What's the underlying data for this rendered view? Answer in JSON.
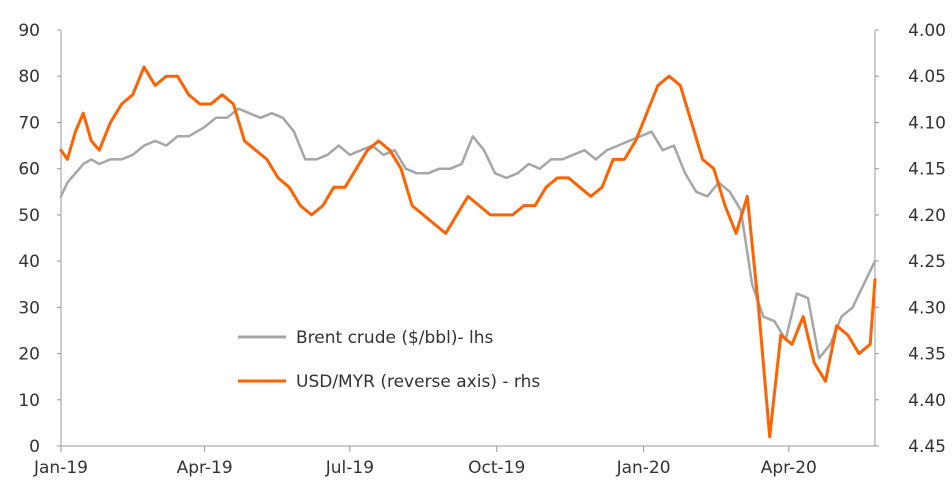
{
  "chart_data": {
    "type": "line",
    "x_ticks": [
      "Jan-19",
      "Apr-19",
      "Jul-19",
      "Oct-19",
      "Jan-20",
      "Apr-20"
    ],
    "x_range": [
      "2019-01-01",
      "2020-05-25"
    ],
    "y_left": {
      "lim": [
        0,
        90
      ],
      "ticks": [
        "0",
        "10",
        "20",
        "30",
        "40",
        "50",
        "60",
        "70",
        "80",
        "90"
      ]
    },
    "y_right": {
      "lim": [
        4.45,
        4.0
      ],
      "reversed": true,
      "ticks": [
        "4.00",
        "4.05",
        "4.10",
        "4.15",
        "4.20",
        "4.25",
        "4.30",
        "4.35",
        "4.40",
        "4.45"
      ]
    },
    "grid": false,
    "legend_position": "center-left",
    "series": [
      {
        "name": "Brent crude ($/bbl)- lhs",
        "axis": "left",
        "color": "#a6a6a6",
        "points": [
          [
            "2019-01-01",
            54
          ],
          [
            "2019-01-05",
            57
          ],
          [
            "2019-01-10",
            59
          ],
          [
            "2019-01-15",
            61
          ],
          [
            "2019-01-20",
            62
          ],
          [
            "2019-01-25",
            61
          ],
          [
            "2019-02-01",
            62
          ],
          [
            "2019-02-08",
            62
          ],
          [
            "2019-02-15",
            63
          ],
          [
            "2019-02-22",
            65
          ],
          [
            "2019-03-01",
            66
          ],
          [
            "2019-03-08",
            65
          ],
          [
            "2019-03-15",
            67
          ],
          [
            "2019-03-22",
            67
          ],
          [
            "2019-04-01",
            69
          ],
          [
            "2019-04-08",
            71
          ],
          [
            "2019-04-15",
            71
          ],
          [
            "2019-04-22",
            73
          ],
          [
            "2019-04-29",
            72
          ],
          [
            "2019-05-06",
            71
          ],
          [
            "2019-05-13",
            72
          ],
          [
            "2019-05-20",
            71
          ],
          [
            "2019-05-27",
            68
          ],
          [
            "2019-06-03",
            62
          ],
          [
            "2019-06-10",
            62
          ],
          [
            "2019-06-17",
            63
          ],
          [
            "2019-06-24",
            65
          ],
          [
            "2019-07-01",
            63
          ],
          [
            "2019-07-08",
            64
          ],
          [
            "2019-07-15",
            65
          ],
          [
            "2019-07-22",
            63
          ],
          [
            "2019-07-29",
            64
          ],
          [
            "2019-08-05",
            60
          ],
          [
            "2019-08-12",
            59
          ],
          [
            "2019-08-19",
            59
          ],
          [
            "2019-08-26",
            60
          ],
          [
            "2019-09-02",
            60
          ],
          [
            "2019-09-09",
            61
          ],
          [
            "2019-09-16",
            67
          ],
          [
            "2019-09-23",
            64
          ],
          [
            "2019-09-30",
            59
          ],
          [
            "2019-10-07",
            58
          ],
          [
            "2019-10-14",
            59
          ],
          [
            "2019-10-21",
            61
          ],
          [
            "2019-10-28",
            60
          ],
          [
            "2019-11-04",
            62
          ],
          [
            "2019-11-11",
            62
          ],
          [
            "2019-11-18",
            63
          ],
          [
            "2019-11-25",
            64
          ],
          [
            "2019-12-02",
            62
          ],
          [
            "2019-12-09",
            64
          ],
          [
            "2019-12-16",
            65
          ],
          [
            "2019-12-23",
            66
          ],
          [
            "2019-12-30",
            67
          ],
          [
            "2020-01-06",
            68
          ],
          [
            "2020-01-13",
            64
          ],
          [
            "2020-01-20",
            65
          ],
          [
            "2020-01-27",
            59
          ],
          [
            "2020-02-03",
            55
          ],
          [
            "2020-02-10",
            54
          ],
          [
            "2020-02-17",
            57
          ],
          [
            "2020-02-24",
            55
          ],
          [
            "2020-03-02",
            51
          ],
          [
            "2020-03-09",
            35
          ],
          [
            "2020-03-16",
            28
          ],
          [
            "2020-03-23",
            27
          ],
          [
            "2020-03-30",
            23
          ],
          [
            "2020-04-06",
            33
          ],
          [
            "2020-04-13",
            32
          ],
          [
            "2020-04-20",
            19
          ],
          [
            "2020-04-27",
            22
          ],
          [
            "2020-05-04",
            28
          ],
          [
            "2020-05-11",
            30
          ],
          [
            "2020-05-18",
            35
          ],
          [
            "2020-05-25",
            40
          ]
        ]
      },
      {
        "name": "USD/MYR (reverse axis) - rhs",
        "axis": "right",
        "color": "#ff6200",
        "points": [
          [
            "2019-01-01",
            4.13
          ],
          [
            "2019-01-05",
            4.14
          ],
          [
            "2019-01-10",
            4.11
          ],
          [
            "2019-01-15",
            4.09
          ],
          [
            "2019-01-20",
            4.12
          ],
          [
            "2019-01-25",
            4.13
          ],
          [
            "2019-02-01",
            4.1
          ],
          [
            "2019-02-08",
            4.08
          ],
          [
            "2019-02-15",
            4.07
          ],
          [
            "2019-02-22",
            4.04
          ],
          [
            "2019-03-01",
            4.06
          ],
          [
            "2019-03-08",
            4.05
          ],
          [
            "2019-03-15",
            4.05
          ],
          [
            "2019-03-22",
            4.07
          ],
          [
            "2019-03-29",
            4.08
          ],
          [
            "2019-04-05",
            4.08
          ],
          [
            "2019-04-12",
            4.07
          ],
          [
            "2019-04-19",
            4.08
          ],
          [
            "2019-04-26",
            4.12
          ],
          [
            "2019-05-03",
            4.13
          ],
          [
            "2019-05-10",
            4.14
          ],
          [
            "2019-05-17",
            4.16
          ],
          [
            "2019-05-24",
            4.17
          ],
          [
            "2019-05-31",
            4.19
          ],
          [
            "2019-06-07",
            4.2
          ],
          [
            "2019-06-14",
            4.19
          ],
          [
            "2019-06-21",
            4.17
          ],
          [
            "2019-06-28",
            4.17
          ],
          [
            "2019-07-05",
            4.15
          ],
          [
            "2019-07-12",
            4.13
          ],
          [
            "2019-07-19",
            4.12
          ],
          [
            "2019-07-26",
            4.13
          ],
          [
            "2019-08-02",
            4.15
          ],
          [
            "2019-08-09",
            4.19
          ],
          [
            "2019-08-16",
            4.2
          ],
          [
            "2019-08-23",
            4.21
          ],
          [
            "2019-08-30",
            4.22
          ],
          [
            "2019-09-06",
            4.2
          ],
          [
            "2019-09-13",
            4.18
          ],
          [
            "2019-09-20",
            4.19
          ],
          [
            "2019-09-27",
            4.2
          ],
          [
            "2019-10-04",
            4.2
          ],
          [
            "2019-10-11",
            4.2
          ],
          [
            "2019-10-18",
            4.19
          ],
          [
            "2019-10-25",
            4.19
          ],
          [
            "2019-11-01",
            4.17
          ],
          [
            "2019-11-08",
            4.16
          ],
          [
            "2019-11-15",
            4.16
          ],
          [
            "2019-11-22",
            4.17
          ],
          [
            "2019-11-29",
            4.18
          ],
          [
            "2019-12-06",
            4.17
          ],
          [
            "2019-12-13",
            4.14
          ],
          [
            "2019-12-20",
            4.14
          ],
          [
            "2019-12-27",
            4.12
          ],
          [
            "2020-01-03",
            4.09
          ],
          [
            "2020-01-10",
            4.06
          ],
          [
            "2020-01-17",
            4.05
          ],
          [
            "2020-01-24",
            4.06
          ],
          [
            "2020-01-31",
            4.1
          ],
          [
            "2020-02-07",
            4.14
          ],
          [
            "2020-02-14",
            4.15
          ],
          [
            "2020-02-21",
            4.19
          ],
          [
            "2020-02-28",
            4.22
          ],
          [
            "2020-03-06",
            4.18
          ],
          [
            "2020-03-13",
            4.3
          ],
          [
            "2020-03-20",
            4.44
          ],
          [
            "2020-03-27",
            4.33
          ],
          [
            "2020-04-03",
            4.34
          ],
          [
            "2020-04-10",
            4.31
          ],
          [
            "2020-04-17",
            4.36
          ],
          [
            "2020-04-24",
            4.38
          ],
          [
            "2020-05-01",
            4.32
          ],
          [
            "2020-05-08",
            4.33
          ],
          [
            "2020-05-15",
            4.35
          ],
          [
            "2020-05-22",
            4.34
          ],
          [
            "2020-05-25",
            4.27
          ]
        ]
      }
    ]
  }
}
